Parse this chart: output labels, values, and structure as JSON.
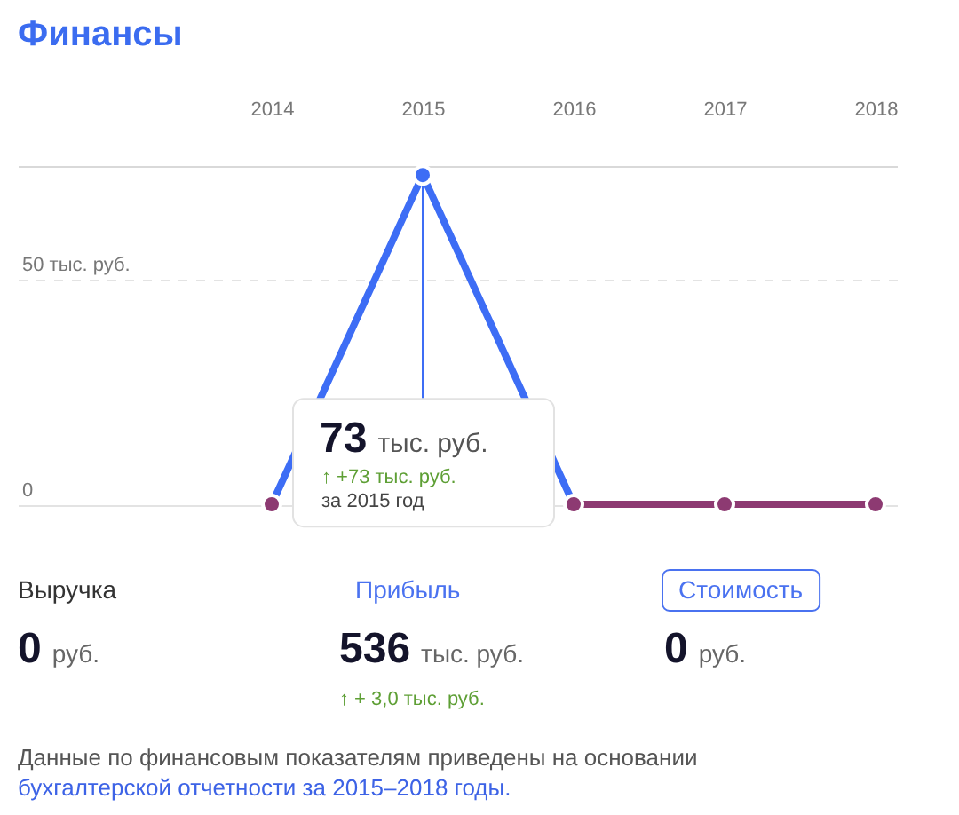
{
  "chart_data": {
    "type": "line",
    "title": "Финансы",
    "categories": [
      "2014",
      "2015",
      "2016",
      "2017",
      "2018"
    ],
    "series": [
      {
        "color": "#3d6df5",
        "values": [
          0,
          73,
          0,
          null,
          null
        ],
        "marker": "none"
      },
      {
        "color": "#8d3a72",
        "values": [
          null,
          null,
          0,
          0,
          0
        ],
        "marker": "none"
      },
      {
        "type": "scatter",
        "values": [
          0,
          73,
          0,
          0,
          0
        ],
        "colors": [
          "#8d3a72",
          "#3d6df5",
          "#8d3a72",
          "#8d3a72",
          "#8d3a72"
        ],
        "marker": "circle"
      }
    ],
    "ylim": [
      0,
      75
    ],
    "yticks": [
      0,
      {
        "value": 50,
        "label": "50 тыс. руб."
      }
    ],
    "grid": "y",
    "annotations": [
      {
        "text": "73 тыс. руб.",
        "x": "2015",
        "y": 73
      },
      "↑ +73 тыс. руб.",
      "за 2015 год",
      "Выручка",
      "0 руб.",
      "Прибыль",
      "536 тыс. руб.",
      "↑ + 3,0 тыс. руб.",
      "Стоимость",
      "0 руб.",
      "Данные по финансовым показателям приведены на основании",
      "бухгалтерской отчетности за 2015–2018 годы."
    ]
  }
}
